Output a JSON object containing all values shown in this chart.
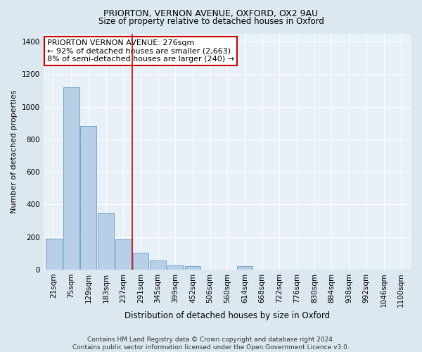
{
  "title1": "PRIORTON, VERNON AVENUE, OXFORD, OX2 9AU",
  "title2": "Size of property relative to detached houses in Oxford",
  "xlabel": "Distribution of detached houses by size in Oxford",
  "ylabel": "Number of detached properties",
  "categories": [
    "21sqm",
    "75sqm",
    "129sqm",
    "183sqm",
    "237sqm",
    "291sqm",
    "345sqm",
    "399sqm",
    "452sqm",
    "506sqm",
    "560sqm",
    "614sqm",
    "668sqm",
    "722sqm",
    "776sqm",
    "830sqm",
    "884sqm",
    "938sqm",
    "992sqm",
    "1046sqm",
    "1100sqm"
  ],
  "values": [
    190,
    1120,
    880,
    345,
    185,
    105,
    55,
    25,
    20,
    0,
    0,
    20,
    0,
    0,
    0,
    0,
    0,
    0,
    0,
    0,
    0
  ],
  "bar_color": "#b8cfe8",
  "bar_edge_color": "#6699cc",
  "vline_x_index": 5,
  "vline_color": "#cc0000",
  "annotation_text": "PRIORTON VERNON AVENUE: 276sqm\n← 92% of detached houses are smaller (2,663)\n8% of semi-detached houses are larger (240) →",
  "annotation_box_color": "white",
  "annotation_box_edge": "#cc0000",
  "ylim": [
    0,
    1450
  ],
  "yticks": [
    0,
    200,
    400,
    600,
    800,
    1000,
    1200,
    1400
  ],
  "footer": "Contains HM Land Registry data © Crown copyright and database right 2024.\nContains public sector information licensed under the Open Government Licence v3.0.",
  "bg_color": "#dce8f0",
  "plot_bg_color": "#e8f0f8",
  "title1_fontsize": 9,
  "title2_fontsize": 8.5,
  "xlabel_fontsize": 8.5,
  "ylabel_fontsize": 8,
  "tick_fontsize": 7.5,
  "annotation_fontsize": 8,
  "footer_fontsize": 6.5
}
